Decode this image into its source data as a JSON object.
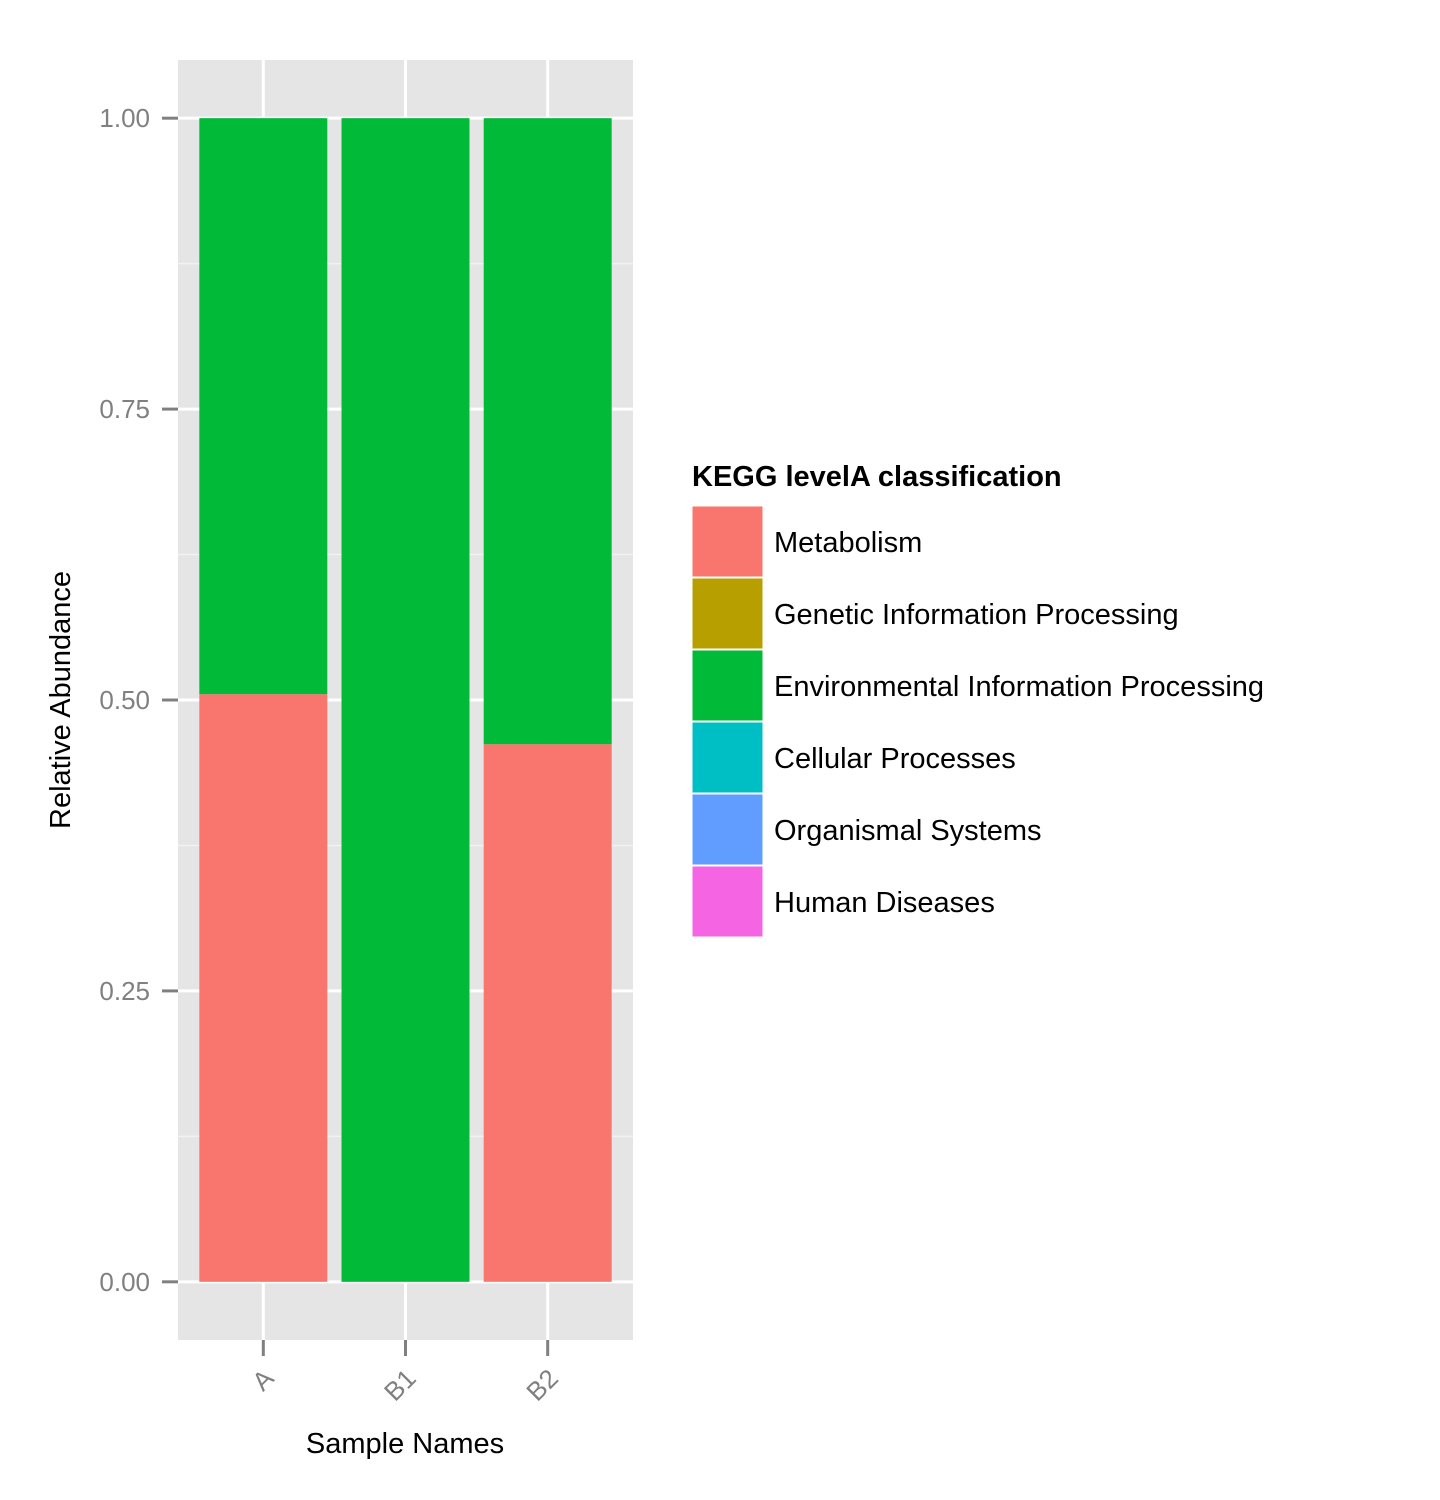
{
  "chart_data": {
    "type": "bar",
    "stacked": true,
    "categories": [
      "A",
      "B1",
      "B2"
    ],
    "xlabel": "Sample Names",
    "ylabel": "Relative Abundance",
    "ylim": [
      -0.05,
      1.05
    ],
    "yticks": [
      0.0,
      0.25,
      0.5,
      0.75,
      1.0
    ],
    "ytick_labels": [
      "0.00",
      "0.25",
      "0.50",
      "0.75",
      "1.00"
    ],
    "grid": true,
    "legend": {
      "title": "KEGG levelA classification",
      "placement": "right"
    },
    "series": [
      {
        "name": "Metabolism",
        "color": "#F8766D",
        "values": [
          0.505,
          0.0,
          0.462
        ]
      },
      {
        "name": "Genetic Information Processing",
        "color": "#B79F00",
        "values": [
          0.0,
          0.0,
          0.0
        ]
      },
      {
        "name": "Environmental Information Processing",
        "color": "#00BA38",
        "values": [
          0.495,
          1.0,
          0.538
        ]
      },
      {
        "name": "Cellular Processes",
        "color": "#00BFC4",
        "values": [
          0.0,
          0.0,
          0.0
        ]
      },
      {
        "name": "Organismal Systems",
        "color": "#619CFF",
        "values": [
          0.0,
          0.0,
          0.0
        ]
      },
      {
        "name": "Human Diseases",
        "color": "#F564E3",
        "values": [
          0.0,
          0.0,
          0.0
        ]
      }
    ],
    "colors": {
      "panel_background": "#E5E5E5",
      "grid_major": "#FFFFFF",
      "grid_minor": "#F2F2F2",
      "tick_color": "#808080"
    }
  }
}
